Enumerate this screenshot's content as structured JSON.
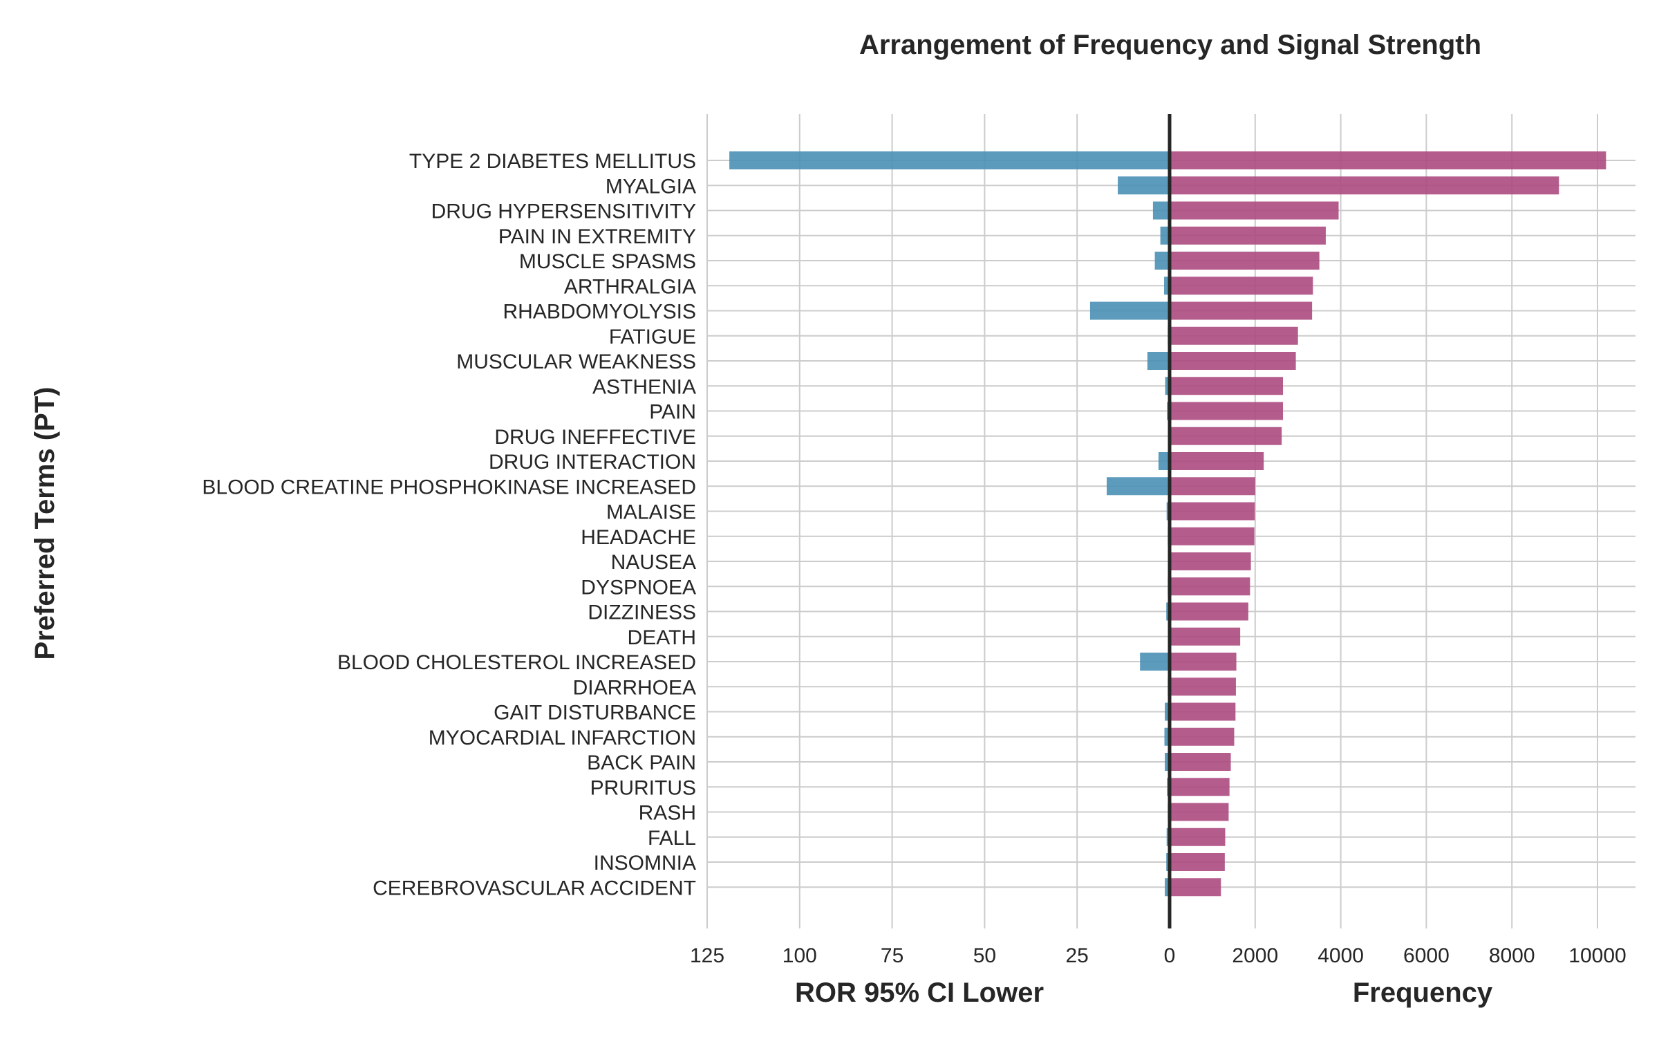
{
  "chart_data": {
    "type": "bar",
    "title": "Arrangement of Frequency and Signal Strength",
    "ylabel": "Preferred Terms (PT)",
    "left_xlabel": "ROR 95% CI Lower",
    "right_xlabel": "Frequency",
    "left_xlim": [
      125,
      0
    ],
    "right_xlim": [
      0,
      10700
    ],
    "left_ticks": [
      "125",
      "100",
      "75",
      "50",
      "25",
      "0"
    ],
    "right_ticks": [
      "2000",
      "4000",
      "6000",
      "8000",
      "10000"
    ],
    "grid": true,
    "colors": {
      "ror": "#4a90b5",
      "frequency": "#ac4b80",
      "zero_line": "#262626"
    },
    "categories": [
      "TYPE 2 DIABETES MELLITUS",
      "MYALGIA",
      "DRUG HYPERSENSITIVITY",
      "PAIN IN EXTREMITY",
      "MUSCLE SPASMS",
      "ARTHRALGIA",
      "RHABDOMYOLYSIS",
      "FATIGUE",
      "MUSCULAR WEAKNESS",
      "ASTHENIA",
      "PAIN",
      "DRUG INEFFECTIVE",
      "DRUG INTERACTION",
      "BLOOD CREATINE PHOSPHOKINASE INCREASED",
      "MALAISE",
      "HEADACHE",
      "NAUSEA",
      "DYSPNOEA",
      "DIZZINESS",
      "DEATH",
      "BLOOD CHOLESTEROL INCREASED",
      "DIARRHOEA",
      "GAIT DISTURBANCE",
      "MYOCARDIAL INFARCTION",
      "BACK PAIN",
      "PRURITUS",
      "RASH",
      "FALL",
      "INSOMNIA",
      "CEREBROVASCULAR ACCIDENT"
    ],
    "series": [
      {
        "name": "ROR 95% CI Lower",
        "values": [
          119,
          14,
          4.5,
          2.5,
          4,
          1.5,
          21.5,
          0.5,
          6,
          1.2,
          0.7,
          0.3,
          3,
          17,
          0.8,
          0.5,
          0.4,
          0.5,
          0.9,
          0.3,
          8,
          0.5,
          1.3,
          1.4,
          1.3,
          0.7,
          0.5,
          0.8,
          0.9,
          1.3
        ]
      },
      {
        "name": "Frequency",
        "values": [
          10200,
          9100,
          3950,
          3650,
          3500,
          3350,
          3330,
          3000,
          2950,
          2650,
          2650,
          2620,
          2200,
          2000,
          1990,
          1980,
          1900,
          1880,
          1840,
          1650,
          1560,
          1550,
          1540,
          1510,
          1430,
          1400,
          1380,
          1300,
          1290,
          1200
        ]
      }
    ]
  }
}
